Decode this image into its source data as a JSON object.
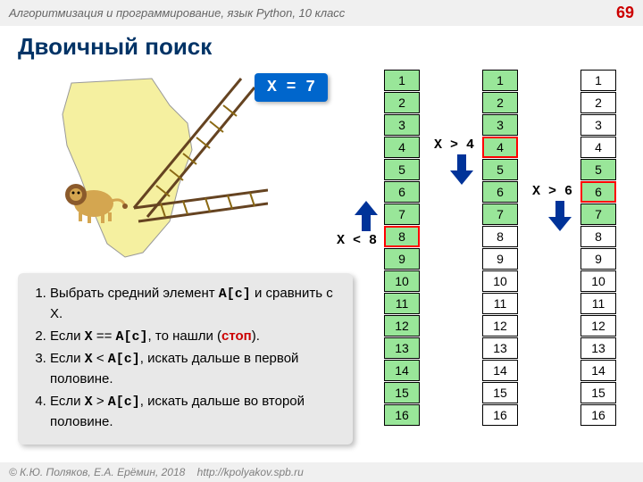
{
  "header": {
    "subject": "Алгоритмизация и программирование, язык Python, 10 класс",
    "page": "69"
  },
  "title": "Двоичный поиск",
  "x_equals": "X = 7",
  "columns": {
    "col1": {
      "cells": [
        "1",
        "2",
        "3",
        "4",
        "5",
        "6",
        "7",
        "8",
        "9",
        "10",
        "11",
        "12",
        "13",
        "14",
        "15",
        "16"
      ],
      "green_from": 0,
      "green_to": 15,
      "highlight_index": 7
    },
    "col2": {
      "cells": [
        "1",
        "2",
        "3",
        "4",
        "5",
        "6",
        "7",
        "8",
        "9",
        "10",
        "11",
        "12",
        "13",
        "14",
        "15",
        "16"
      ],
      "green_from": 0,
      "green_to": 6,
      "highlight_index": 3
    },
    "col3": {
      "cells": [
        "1",
        "2",
        "3",
        "4",
        "5",
        "6",
        "7",
        "8",
        "9",
        "10",
        "11",
        "12",
        "13",
        "14",
        "15",
        "16"
      ],
      "green_from": 4,
      "green_to": 6,
      "highlight_index": 5
    }
  },
  "labels": {
    "l1": "X < 8",
    "l2": "X > 4",
    "l3": "X > 6"
  },
  "algo": {
    "step1_a": "Выбрать средний элемент ",
    "step1_code": "A[c]",
    "step1_b": " и сравнить с X.",
    "step2_a": "Если ",
    "step2_code1": "X",
    "step2_eq": " == ",
    "step2_code2": "A[c]",
    "step2_b": ", то нашли (",
    "step2_stop": "стоп",
    "step2_c": ").",
    "step3_a": "Если ",
    "step3_code1": "X",
    "step3_lt": " < ",
    "step3_code2": "A[c]",
    "step3_b": ", искать дальше в первой половине.",
    "step4_a": "Если ",
    "step4_code1": "X",
    "step4_gt": " > ",
    "step4_code2": "A[c]",
    "step4_b": ", искать дальше во второй половине."
  },
  "footer": {
    "copyright": "© К.Ю. Поляков, Е.А. Ерёмин, 2018",
    "url": "http://kpolyakov.spb.ru"
  },
  "colors": {
    "blue_arrow": "#003399",
    "green_cell": "#99e699",
    "red_border": "#ff0000",
    "x_box_bg": "#0066cc"
  }
}
